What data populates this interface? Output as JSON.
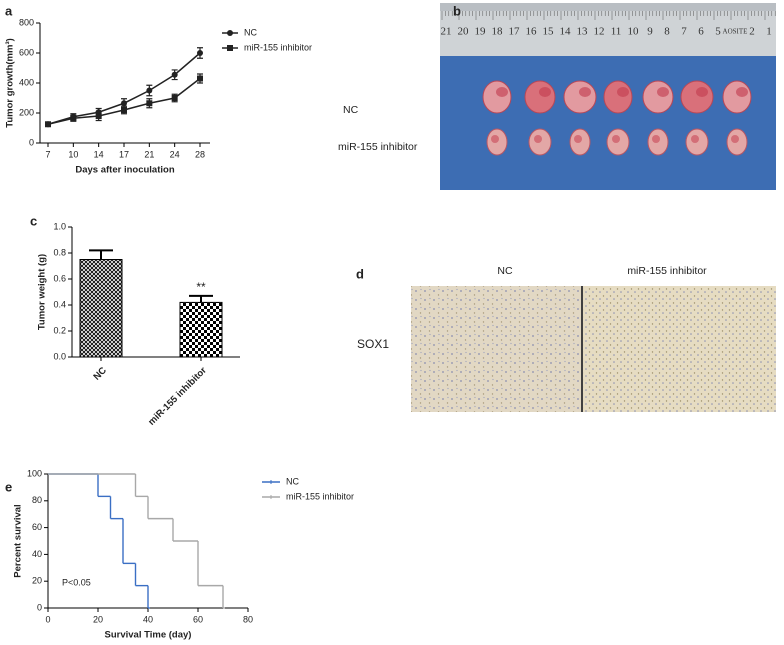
{
  "chart_data": [
    {
      "type": "line",
      "panel_label": "a",
      "x_label": "Days after inoculation",
      "y_label": "Tumor growth(mm³)",
      "categories": [
        "7",
        "10",
        "14",
        "17",
        "21",
        "24",
        "28"
      ],
      "series": [
        {
          "name": "NC",
          "color": "#222222",
          "marker": "circle",
          "values": [
            125,
            175,
            205,
            265,
            350,
            455,
            600
          ],
          "errors": [
            12,
            20,
            25,
            30,
            35,
            32,
            35
          ]
        },
        {
          "name": "miR-155 inhibitor",
          "color": "#222222",
          "marker": "square",
          "values": [
            125,
            165,
            180,
            220,
            265,
            300,
            430
          ],
          "errors": [
            10,
            20,
            30,
            25,
            30,
            25,
            30
          ]
        }
      ],
      "ylim": [
        0,
        800
      ],
      "yticks": [
        0,
        200,
        400,
        600,
        800
      ]
    },
    {
      "type": "bar",
      "panel_label": "c",
      "y_label": "Tumor weight (g)",
      "categories": [
        "NC",
        "miR-155 inhibitor"
      ],
      "values": [
        0.75,
        0.42
      ],
      "errors": [
        0.07,
        0.05
      ],
      "color": "#000000",
      "annotation": "**",
      "ylim": [
        0,
        1.0
      ],
      "yticks": [
        {
          "value": 0,
          "label": "0.0"
        },
        0.2,
        0.4,
        0.6,
        0.8,
        {
          "value": 1.0,
          "label": "1.0"
        }
      ]
    },
    {
      "type": "survival",
      "panel_label": "e",
      "x_label": "Survival Time (day)",
      "y_label": "Percent survival",
      "annotation": "P<0.05",
      "series": [
        {
          "name": "NC",
          "color": "#3a6fc4",
          "x": [
            0,
            20,
            25,
            30,
            35,
            40
          ],
          "values": [
            100,
            83.3,
            66.7,
            33.3,
            16.7,
            0
          ]
        },
        {
          "name": "miR-155 inhibitor",
          "color": "#a8a8a8",
          "x": [
            0,
            35,
            40,
            50,
            60,
            70
          ],
          "values": [
            100,
            83.3,
            66.7,
            50,
            16.7,
            0
          ]
        }
      ],
      "xlim": [
        0,
        80
      ],
      "xticks": [
        0,
        20,
        40,
        60,
        80
      ],
      "ylim": [
        0,
        100
      ],
      "yticks": [
        0,
        20,
        40,
        60,
        80,
        100
      ]
    }
  ],
  "photo": {
    "panel_label": "b",
    "ruler_labels": [
      "21",
      "20",
      "19",
      "18",
      "17",
      "16",
      "15",
      "14",
      "13",
      "12",
      "11",
      "10",
      "9",
      "8",
      "7",
      "6",
      "5",
      "AOSITE",
      "2",
      "1"
    ],
    "row_labels": [
      "NC",
      "miR-155 inhibitor"
    ]
  },
  "histology": {
    "panel_label": "d",
    "column_labels": [
      "NC",
      "miR-155 inhibitor"
    ],
    "row_label": "SOX1"
  }
}
